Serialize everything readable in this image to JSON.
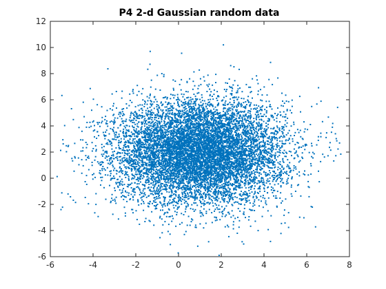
{
  "chart_data": {
    "type": "scatter",
    "title": "P4 2-d Gaussian random data",
    "xlabel": "",
    "ylabel": "",
    "xlim": [
      -6,
      8
    ],
    "ylim": [
      -6,
      12
    ],
    "xticks": [
      "-6",
      "-4",
      "-2",
      "0",
      "2",
      "4",
      "6",
      "8"
    ],
    "yticks": [
      "-6",
      "-4",
      "-2",
      "0",
      "2",
      "4",
      "6",
      "8",
      "10",
      "12"
    ],
    "grid": false,
    "legend": false,
    "marker_color": "#0072BD",
    "distribution": {
      "kind": "2-d Gaussian",
      "mean": [
        1,
        2
      ],
      "std": [
        2,
        2
      ]
    },
    "highlighted_outliers": [
      {
        "x": 2.1,
        "y": 10.2
      },
      {
        "x": -5.5,
        "y": -2.4
      },
      {
        "x": 1.9,
        "y": -5.9
      },
      {
        "x": 7.2,
        "y": 3.9
      },
      {
        "x": 0.9,
        "y": -5.2
      }
    ]
  }
}
